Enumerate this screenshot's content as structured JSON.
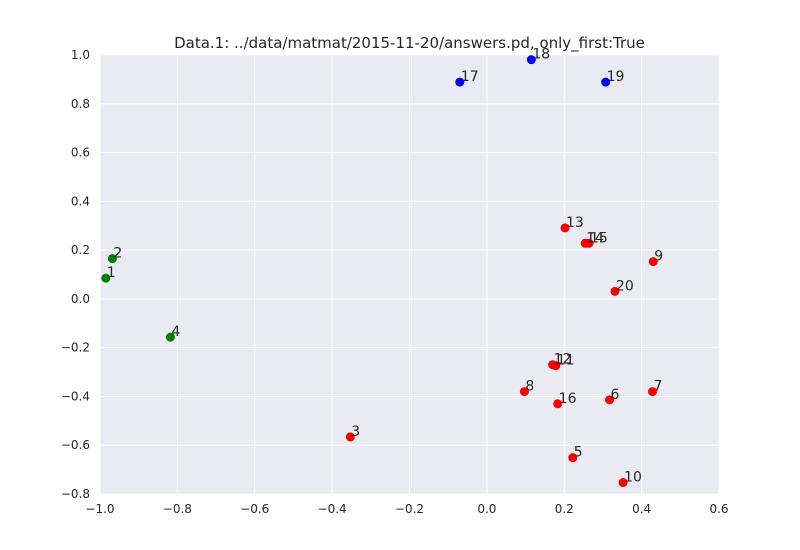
{
  "chart_data": {
    "type": "scatter",
    "title": "Data.1: ../data/matmat/2015-11-20/answers.pd, only_first:True",
    "xlabel": "",
    "ylabel": "",
    "xlim": [
      -1.0,
      0.6
    ],
    "ylim": [
      -0.8,
      1.0
    ],
    "x_ticks": [
      -1.0,
      -0.8,
      -0.6,
      -0.4,
      -0.2,
      0.0,
      0.2,
      0.4,
      0.6
    ],
    "x_tick_labels": [
      "−1.0",
      "−0.8",
      "−0.6",
      "−0.4",
      "−0.2",
      "0.0",
      "0.2",
      "0.4",
      "0.6"
    ],
    "y_ticks": [
      -0.8,
      -0.6,
      -0.4,
      -0.2,
      0.0,
      0.2,
      0.4,
      0.6,
      0.8,
      1.0
    ],
    "y_tick_labels": [
      "−0.8",
      "−0.6",
      "−0.4",
      "−0.2",
      "0.0",
      "0.2",
      "0.4",
      "0.6",
      "0.8",
      "1.0"
    ],
    "grid": true,
    "background": "#eaeaf2",
    "grid_color": "#ffffff",
    "colors": {
      "red": "#ff0000",
      "green": "#007f00",
      "blue": "#0000ff"
    },
    "points": [
      {
        "label": "1",
        "x": -0.985,
        "y": 0.085,
        "color": "green"
      },
      {
        "label": "2",
        "x": -0.968,
        "y": 0.165,
        "color": "green"
      },
      {
        "label": "4",
        "x": -0.818,
        "y": -0.157,
        "color": "green"
      },
      {
        "label": "3",
        "x": -0.353,
        "y": -0.566,
        "color": "red"
      },
      {
        "label": "5",
        "x": 0.222,
        "y": -0.651,
        "color": "red"
      },
      {
        "label": "6",
        "x": 0.317,
        "y": -0.414,
        "color": "red"
      },
      {
        "label": "7",
        "x": 0.428,
        "y": -0.38,
        "color": "red"
      },
      {
        "label": "8",
        "x": 0.097,
        "y": -0.38,
        "color": "red"
      },
      {
        "label": "9",
        "x": 0.43,
        "y": 0.153,
        "color": "red"
      },
      {
        "label": "10",
        "x": 0.352,
        "y": -0.753,
        "color": "red"
      },
      {
        "label": "11",
        "x": 0.178,
        "y": -0.274,
        "color": "red"
      },
      {
        "label": "12",
        "x": 0.17,
        "y": -0.27,
        "color": "red"
      },
      {
        "label": "13",
        "x": 0.202,
        "y": 0.291,
        "color": "red"
      },
      {
        "label": "14",
        "x": 0.254,
        "y": 0.228,
        "color": "red"
      },
      {
        "label": "15",
        "x": 0.264,
        "y": 0.228,
        "color": "red"
      },
      {
        "label": "16",
        "x": 0.183,
        "y": -0.43,
        "color": "red"
      },
      {
        "label": "20",
        "x": 0.331,
        "y": 0.031,
        "color": "red"
      },
      {
        "label": "17",
        "x": -0.07,
        "y": 0.889,
        "color": "blue"
      },
      {
        "label": "18",
        "x": 0.115,
        "y": 0.981,
        "color": "blue"
      },
      {
        "label": "19",
        "x": 0.307,
        "y": 0.889,
        "color": "blue"
      }
    ]
  }
}
